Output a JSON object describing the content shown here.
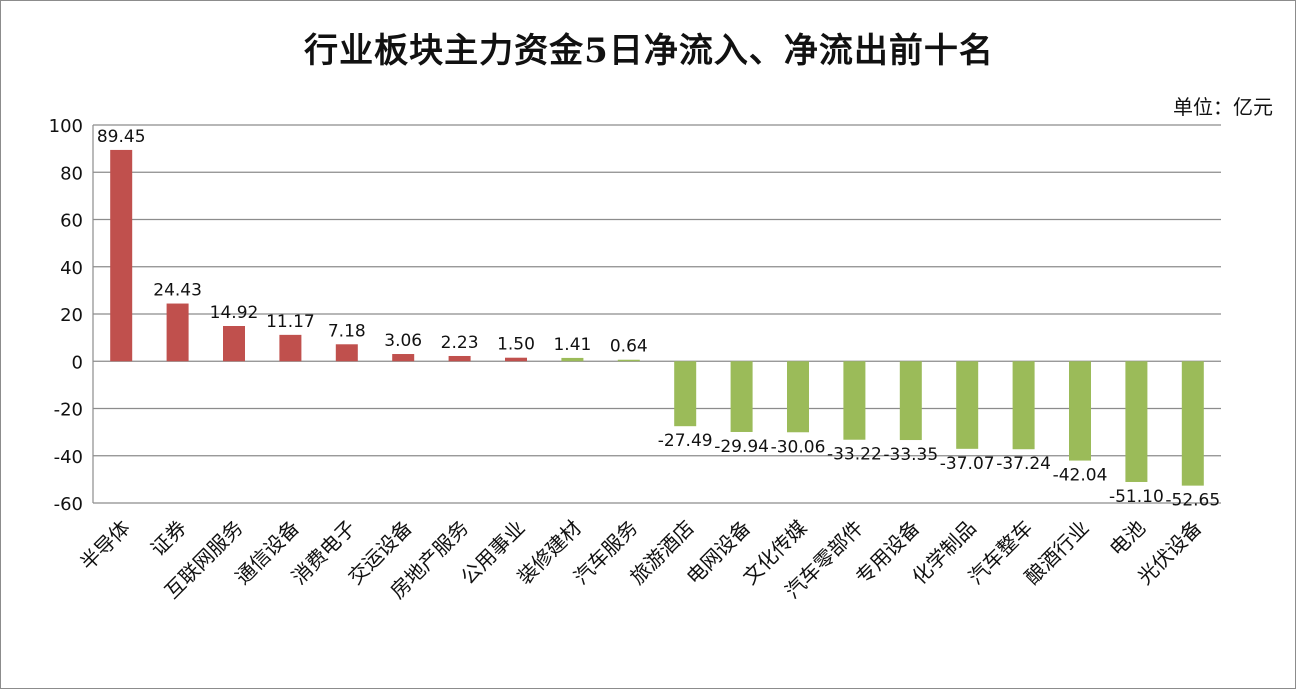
{
  "chart_data": {
    "type": "bar",
    "title": "行业板块主力资金5日净流入、净流出前十名",
    "unit_label": "单位：亿元",
    "categories": [
      "半导体",
      "证券",
      "互联网服务",
      "通信设备",
      "消费电子",
      "交运设备",
      "房地产服务",
      "公用事业",
      "装修建材",
      "汽车服务",
      "旅游酒店",
      "电网设备",
      "文化传媒",
      "汽车零部件",
      "专用设备",
      "化学制品",
      "汽车整车",
      "酿酒行业",
      "电池",
      "光伏设备"
    ],
    "values": [
      89.45,
      24.43,
      14.92,
      11.17,
      7.18,
      3.06,
      2.23,
      1.5,
      1.41,
      0.64,
      -27.49,
      -29.94,
      -30.06,
      -33.22,
      -33.35,
      -37.07,
      -37.24,
      -42.04,
      -51.1,
      -52.65
    ],
    "value_labels": [
      "89.45",
      "24.43",
      "14.92",
      "11.17",
      "7.18",
      "3.06",
      "2.23",
      "1.50",
      "1.41",
      "0.64",
      "-27.49",
      "-29.94",
      "-30.06",
      "-33.22",
      "-33.35",
      "-37.07",
      "-37.24",
      "-42.04",
      "-51.10",
      "-52.65"
    ],
    "bar_colors": [
      "#c0504d",
      "#c0504d",
      "#c0504d",
      "#c0504d",
      "#c0504d",
      "#c0504d",
      "#c0504d",
      "#c0504d",
      "#9bbb59",
      "#9bbb59",
      "#9bbb59",
      "#9bbb59",
      "#9bbb59",
      "#9bbb59",
      "#9bbb59",
      "#9bbb59",
      "#9bbb59",
      "#9bbb59",
      "#9bbb59",
      "#9bbb59"
    ],
    "ylim": [
      -60,
      100
    ],
    "yticks": [
      100,
      80,
      60,
      40,
      20,
      0,
      -20,
      -40,
      -60
    ],
    "grid": true,
    "legend": "none"
  }
}
